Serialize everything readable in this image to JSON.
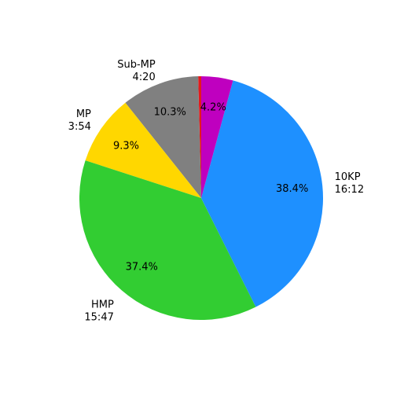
{
  "chart_data": {
    "type": "pie",
    "title": "",
    "start_angle_deg": 90,
    "direction": "counterclockwise",
    "slices": [
      {
        "label_line1": "",
        "label_line2": "",
        "pct_label": "",
        "value": 0.4,
        "color": "#e31a1c",
        "show_pct": false
      },
      {
        "label_line1": "Sub-MP",
        "label_line2": "4:20",
        "pct_label": "10.3%",
        "value": 10.3,
        "color": "#808080",
        "show_pct": true
      },
      {
        "label_line1": "MP",
        "label_line2": "3:54",
        "pct_label": "9.3%",
        "value": 9.3,
        "color": "#ffd700",
        "show_pct": true
      },
      {
        "label_line1": "HMP",
        "label_line2": "15:47",
        "pct_label": "37.4%",
        "value": 37.4,
        "color": "#32cd32",
        "show_pct": true
      },
      {
        "label_line1": "10KP",
        "label_line2": "16:12",
        "pct_label": "38.4%",
        "value": 38.4,
        "color": "#1e90ff",
        "show_pct": true
      },
      {
        "label_line1": "",
        "label_line2": "",
        "pct_label": "4.2%",
        "value": 4.2,
        "color": "#bf00bf",
        "show_pct": true
      }
    ]
  }
}
